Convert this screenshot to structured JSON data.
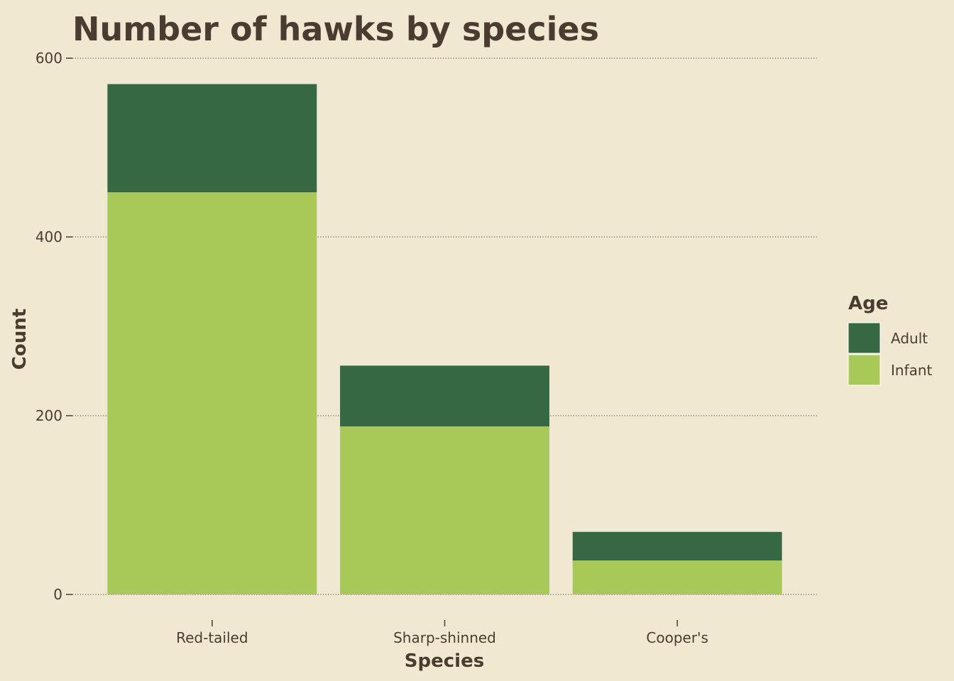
{
  "chart_data": {
    "type": "bar",
    "stacked": true,
    "title": "Number of hawks by species",
    "xlabel": "Species",
    "ylabel": "Count",
    "categories": [
      "Red-tailed",
      "Sharp-shinned",
      "Cooper's"
    ],
    "ylim": [
      0,
      600
    ],
    "yticks": [
      "0",
      "200",
      "400",
      "600"
    ],
    "yticks_values": [
      0,
      200,
      400,
      600
    ],
    "grid": "horizontal dotted",
    "legend": {
      "title": "Age",
      "placement": "right"
    },
    "series": [
      {
        "name": "Infant",
        "values": [
          450,
          188,
          38
        ],
        "color": "#a8c957"
      },
      {
        "name": "Adult",
        "values": [
          121,
          68,
          32
        ],
        "color": "#376844"
      }
    ],
    "legend_order": [
      "Adult",
      "Infant"
    ],
    "colors": {
      "background": "#f1e8d2",
      "text": "#4a3c30",
      "grid": "#4a3c30"
    }
  }
}
